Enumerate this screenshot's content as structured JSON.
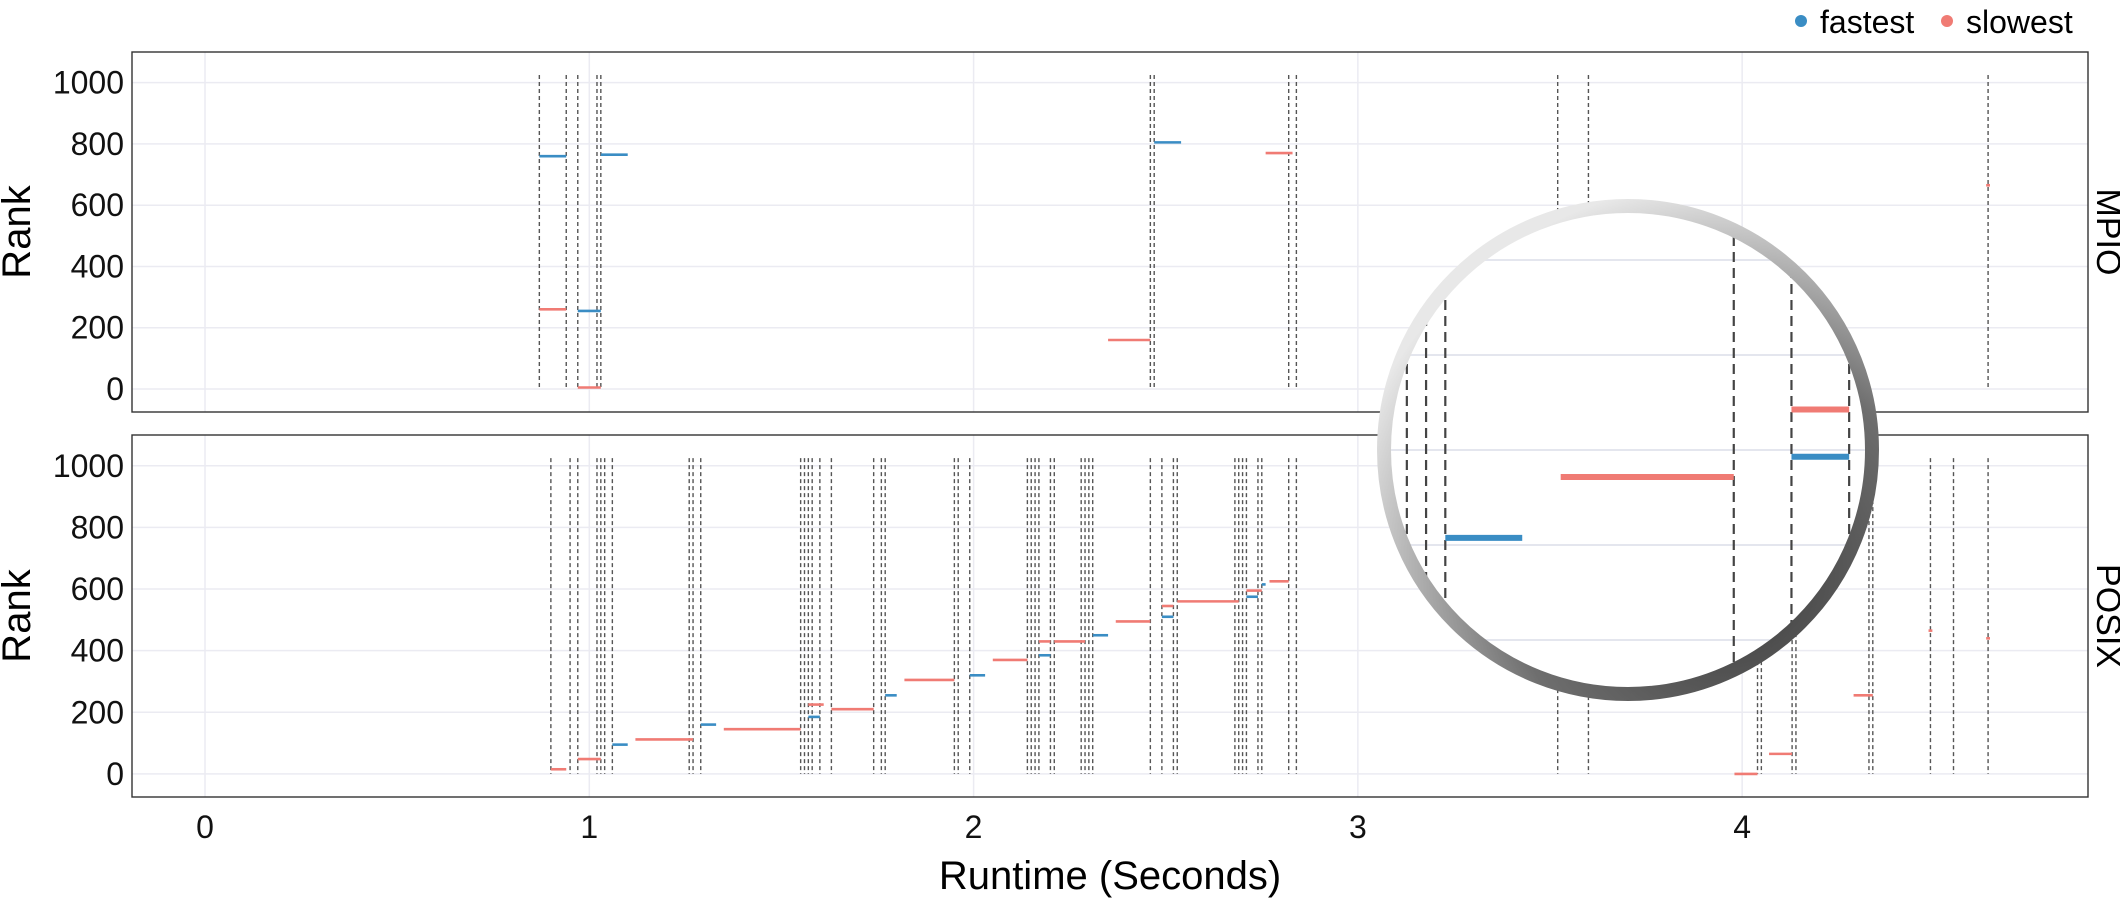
{
  "chart_data": {
    "type": "timeline",
    "xlabel": "Runtime (Seconds)",
    "ylabel": "Rank",
    "xlim": [
      -0.19,
      4.9
    ],
    "ylim": [
      -75,
      1100
    ],
    "xticks": [
      0,
      1,
      2,
      3,
      4
    ],
    "yticks": [
      0,
      200,
      400,
      600,
      800,
      1000
    ],
    "legend": {
      "position": "top-right",
      "entries": [
        {
          "label": "fastest",
          "color": "#3a8dc4"
        },
        {
          "label": "slowest",
          "color": "#f07b74"
        }
      ]
    },
    "panels": [
      {
        "strip": "MPIO",
        "vlines": [
          0.87,
          0.94,
          0.97,
          1.02,
          1.03,
          2.46,
          2.47,
          2.82,
          2.84,
          3.52,
          3.6,
          4.64
        ],
        "segments": [
          {
            "kind": "fastest",
            "x0": 0.87,
            "x1": 0.94,
            "rank": 760
          },
          {
            "kind": "slowest",
            "x0": 0.87,
            "x1": 0.94,
            "rank": 260
          },
          {
            "kind": "fastest",
            "x0": 0.97,
            "x1": 1.03,
            "rank": 255
          },
          {
            "kind": "slowest",
            "x0": 0.97,
            "x1": 1.03,
            "rank": 5
          },
          {
            "kind": "fastest",
            "x0": 1.03,
            "x1": 1.1,
            "rank": 765
          },
          {
            "kind": "fastest",
            "x0": 2.47,
            "x1": 2.54,
            "rank": 805
          },
          {
            "kind": "slowest",
            "x0": 2.35,
            "x1": 2.46,
            "rank": 160
          },
          {
            "kind": "slowest",
            "x0": 2.76,
            "x1": 2.83,
            "rank": 770
          },
          {
            "kind": "slowest",
            "x0": 4.635,
            "x1": 4.645,
            "rank": 665
          }
        ]
      },
      {
        "strip": "POSIX",
        "vlines": [
          0.9,
          0.95,
          0.97,
          1.02,
          1.03,
          1.04,
          1.06,
          1.26,
          1.27,
          1.29,
          1.55,
          1.56,
          1.57,
          1.58,
          1.6,
          1.63,
          1.74,
          1.76,
          1.77,
          1.95,
          1.96,
          1.99,
          2.14,
          2.15,
          2.16,
          2.17,
          2.2,
          2.21,
          2.28,
          2.29,
          2.3,
          2.31,
          2.46,
          2.49,
          2.52,
          2.53,
          2.68,
          2.69,
          2.7,
          2.71,
          2.74,
          2.75,
          2.82,
          2.84,
          3.52,
          3.6,
          4.04,
          4.05,
          4.13,
          4.14,
          4.33,
          4.34,
          4.49,
          4.55,
          4.64
        ],
        "segments": [
          {
            "kind": "slowest",
            "x0": 0.9,
            "x1": 0.94,
            "rank": 15
          },
          {
            "kind": "slowest",
            "x0": 0.97,
            "x1": 1.03,
            "rank": 48
          },
          {
            "kind": "fastest",
            "x0": 1.06,
            "x1": 1.1,
            "rank": 95
          },
          {
            "kind": "slowest",
            "x0": 1.12,
            "x1": 1.27,
            "rank": 112
          },
          {
            "kind": "fastest",
            "x0": 1.29,
            "x1": 1.33,
            "rank": 160
          },
          {
            "kind": "slowest",
            "x0": 1.35,
            "x1": 1.55,
            "rank": 145
          },
          {
            "kind": "fastest",
            "x0": 1.57,
            "x1": 1.6,
            "rank": 185
          },
          {
            "kind": "slowest",
            "x0": 1.57,
            "x1": 1.61,
            "rank": 225
          },
          {
            "kind": "slowest",
            "x0": 1.63,
            "x1": 1.74,
            "rank": 210
          },
          {
            "kind": "fastest",
            "x0": 1.77,
            "x1": 1.8,
            "rank": 255
          },
          {
            "kind": "slowest",
            "x0": 1.82,
            "x1": 1.95,
            "rank": 305
          },
          {
            "kind": "fastest",
            "x0": 1.99,
            "x1": 2.03,
            "rank": 320
          },
          {
            "kind": "slowest",
            "x0": 2.05,
            "x1": 2.14,
            "rank": 370
          },
          {
            "kind": "fastest",
            "x0": 2.17,
            "x1": 2.2,
            "rank": 385
          },
          {
            "kind": "slowest",
            "x0": 2.17,
            "x1": 2.2,
            "rank": 430
          },
          {
            "kind": "slowest",
            "x0": 2.21,
            "x1": 2.29,
            "rank": 430
          },
          {
            "kind": "fastest",
            "x0": 2.31,
            "x1": 2.35,
            "rank": 450
          },
          {
            "kind": "slowest",
            "x0": 2.37,
            "x1": 2.46,
            "rank": 495
          },
          {
            "kind": "fastest",
            "x0": 2.49,
            "x1": 2.52,
            "rank": 510
          },
          {
            "kind": "slowest",
            "x0": 2.49,
            "x1": 2.52,
            "rank": 545
          },
          {
            "kind": "slowest",
            "x0": 2.53,
            "x1": 2.69,
            "rank": 560
          },
          {
            "kind": "fastest",
            "x0": 2.71,
            "x1": 2.74,
            "rank": 575
          },
          {
            "kind": "slowest",
            "x0": 2.71,
            "x1": 2.75,
            "rank": 595
          },
          {
            "kind": "fastest",
            "x0": 2.75,
            "x1": 2.76,
            "rank": 615
          },
          {
            "kind": "slowest",
            "x0": 2.77,
            "x1": 2.82,
            "rank": 625
          },
          {
            "kind": "slowest",
            "x0": 3.98,
            "x1": 4.04,
            "rank": 0
          },
          {
            "kind": "slowest",
            "x0": 4.07,
            "x1": 4.13,
            "rank": 65
          },
          {
            "kind": "slowest",
            "x0": 4.29,
            "x1": 4.34,
            "rank": 255
          },
          {
            "kind": "slowest",
            "x0": 4.485,
            "x1": 4.495,
            "rank": 465
          },
          {
            "kind": "slowest",
            "x0": 4.635,
            "x1": 4.645,
            "rank": 440
          }
        ]
      }
    ]
  }
}
